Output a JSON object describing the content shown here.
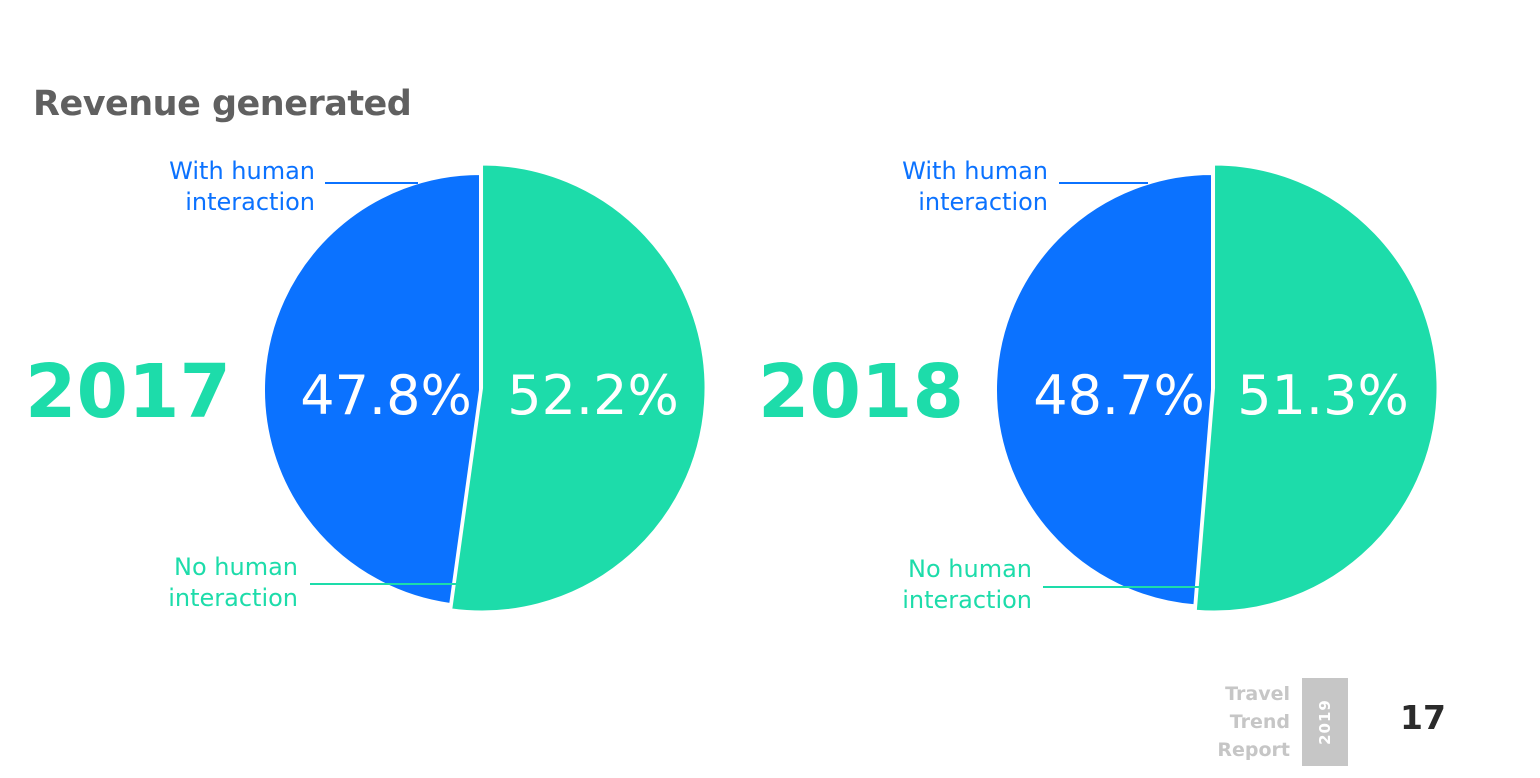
{
  "title": "Revenue generated",
  "colors": {
    "blue": "#0b72ff",
    "green": "#1ddcaa",
    "title": "#606060",
    "footer": "#c6c6c6"
  },
  "chart_data": [
    {
      "type": "pie",
      "year_label": "2017",
      "series": [
        {
          "name": "With human interaction",
          "value": 47.8,
          "label": "47.8%",
          "callout": [
            "With human",
            "interaction"
          ]
        },
        {
          "name": "No human interaction",
          "value": 52.2,
          "label": "52.2%",
          "callout": [
            "No human",
            "interaction"
          ]
        }
      ]
    },
    {
      "type": "pie",
      "year_label": "2018",
      "series": [
        {
          "name": "With human interaction",
          "value": 48.7,
          "label": "48.7%",
          "callout": [
            "With human",
            "interaction"
          ]
        },
        {
          "name": "No human interaction",
          "value": 51.3,
          "label": "51.3%",
          "callout": [
            "No human",
            "interaction"
          ]
        }
      ]
    }
  ],
  "footer": {
    "report_lines": [
      "Travel",
      "Trend",
      "Report"
    ],
    "report_year": "2019",
    "page_number": "17"
  }
}
